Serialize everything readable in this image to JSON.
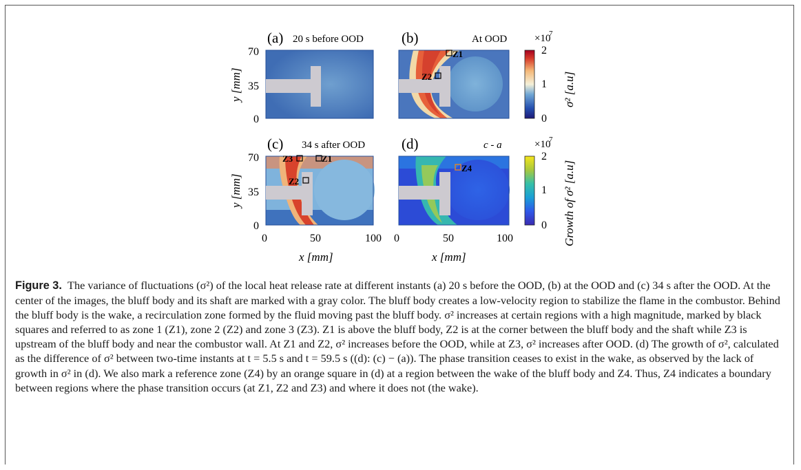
{
  "figure": {
    "panels": [
      {
        "letter": "(a)",
        "title": "20 s before OOD"
      },
      {
        "letter": "(b)",
        "title": "At OOD"
      },
      {
        "letter": "(c)",
        "title": "34 s after OOD"
      },
      {
        "letter": "(d)",
        "title": "c - a"
      }
    ],
    "y_ticks": [
      "70",
      "35",
      "0"
    ],
    "x_ticks_left": [
      "0",
      "50",
      "100"
    ],
    "x_ticks_right": [
      "0",
      "50",
      "100"
    ],
    "y_axis_label": "y [mm]",
    "x_axis_label": "x [mm]",
    "colorbar_top": {
      "exponent": "×10",
      "power": "7",
      "ticks": [
        "2",
        "1",
        "0"
      ],
      "label": "σ² [a.u]"
    },
    "colorbar_bottom": {
      "exponent": "×10",
      "power": "7",
      "ticks": [
        "2",
        "1",
        "0"
      ],
      "label": "Growth of σ² [a.u]"
    },
    "zones": {
      "b": [
        "Z1",
        "Z2"
      ],
      "c": [
        "Z3",
        "Z1",
        "Z2"
      ],
      "d": [
        "Z4"
      ]
    }
  },
  "caption": {
    "label": "Figure 3.",
    "text": "The variance of fluctuations (σ²) of the local heat release rate at different instants (a) 20 s before the OOD, (b) at the OOD and (c) 34 s after the OOD. At the center of the images, the bluff body and its shaft are marked with a gray color. The bluff body creates a low-velocity region to stabilize the flame in the combustor. Behind the bluff body is the wake, a recirculation zone formed by the fluid moving past the bluff body. σ² increases at certain regions with a high magnitude, marked by black squares and referred to as zone 1 (Z1), zone 2 (Z2) and zone 3 (Z3). Z1 is above the bluff body, Z2 is at the corner between the bluff body and the shaft while Z3 is upstream of the bluff body and near the combustor wall. At Z1 and Z2, σ² increases before the OOD, while at Z3, σ² increases after OOD. (d) The growth of σ², calculated as the difference of σ² between two-time instants at t = 5.5 s and t = 59.5 s ((d): (c) − (a)). The phase transition ceases to exist in the wake, as observed by the lack of growth in σ² in (d). We also mark a reference zone (Z4) by an orange square in (d) at a region between the wake of the bluff body and Z4. Thus, Z4 indicates a boundary between regions where the phase transition occurs (at Z1, Z2 and Z3) and where it does not (the wake)."
  }
}
